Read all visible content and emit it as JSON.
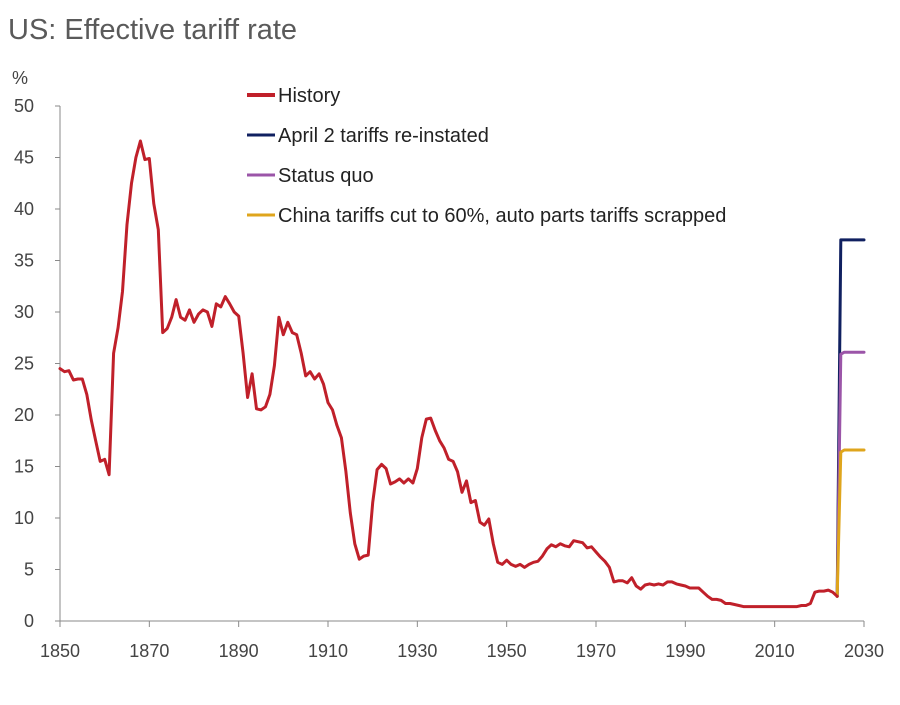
{
  "chart_data": {
    "type": "line",
    "title": "US: Effective tariff rate",
    "xlabel": "",
    "ylabel": "%",
    "xlim": [
      1850,
      2030
    ],
    "ylim": [
      0,
      50
    ],
    "x_ticks": [
      1850,
      1870,
      1890,
      1910,
      1930,
      1950,
      1970,
      1990,
      2010,
      2030
    ],
    "y_ticks": [
      0,
      5,
      10,
      15,
      20,
      25,
      30,
      35,
      40,
      45,
      50
    ],
    "grid": false,
    "legend_position": "top-center",
    "series": [
      {
        "name": "History",
        "color": "#c0202a",
        "points": [
          [
            1850,
            24.5
          ],
          [
            1851,
            24.2
          ],
          [
            1852,
            24.3
          ],
          [
            1853,
            23.4
          ],
          [
            1854,
            23.5
          ],
          [
            1855,
            23.5
          ],
          [
            1856,
            22.0
          ],
          [
            1857,
            19.5
          ],
          [
            1858,
            17.5
          ],
          [
            1859,
            15.5
          ],
          [
            1860,
            15.7
          ],
          [
            1861,
            14.2
          ],
          [
            1862,
            26.0
          ],
          [
            1863,
            28.5
          ],
          [
            1864,
            32.0
          ],
          [
            1865,
            38.5
          ],
          [
            1866,
            42.5
          ],
          [
            1867,
            45.0
          ],
          [
            1868,
            46.6
          ],
          [
            1869,
            44.8
          ],
          [
            1870,
            44.9
          ],
          [
            1871,
            40.5
          ],
          [
            1872,
            38.0
          ],
          [
            1873,
            28.0
          ],
          [
            1874,
            28.4
          ],
          [
            1875,
            29.5
          ],
          [
            1876,
            31.2
          ],
          [
            1877,
            29.5
          ],
          [
            1878,
            29.2
          ],
          [
            1879,
            30.2
          ],
          [
            1880,
            29.0
          ],
          [
            1881,
            29.8
          ],
          [
            1882,
            30.2
          ],
          [
            1883,
            30.0
          ],
          [
            1884,
            28.6
          ],
          [
            1885,
            30.8
          ],
          [
            1886,
            30.5
          ],
          [
            1887,
            31.5
          ],
          [
            1888,
            30.8
          ],
          [
            1889,
            30.0
          ],
          [
            1890,
            29.6
          ],
          [
            1891,
            26.0
          ],
          [
            1892,
            21.7
          ],
          [
            1893,
            24.0
          ],
          [
            1894,
            20.6
          ],
          [
            1895,
            20.5
          ],
          [
            1896,
            20.8
          ],
          [
            1897,
            22.0
          ],
          [
            1898,
            24.8
          ],
          [
            1899,
            29.5
          ],
          [
            1900,
            27.8
          ],
          [
            1901,
            29.0
          ],
          [
            1902,
            28.0
          ],
          [
            1903,
            27.8
          ],
          [
            1904,
            26.0
          ],
          [
            1905,
            23.8
          ],
          [
            1906,
            24.2
          ],
          [
            1907,
            23.5
          ],
          [
            1908,
            24.0
          ],
          [
            1909,
            23.0
          ],
          [
            1910,
            21.2
          ],
          [
            1911,
            20.5
          ],
          [
            1912,
            19.0
          ],
          [
            1913,
            17.8
          ],
          [
            1914,
            14.5
          ],
          [
            1915,
            10.5
          ],
          [
            1916,
            7.5
          ],
          [
            1917,
            6.0
          ],
          [
            1918,
            6.3
          ],
          [
            1919,
            6.4
          ],
          [
            1920,
            11.5
          ],
          [
            1921,
            14.7
          ],
          [
            1922,
            15.2
          ],
          [
            1923,
            14.8
          ],
          [
            1924,
            13.3
          ],
          [
            1925,
            13.5
          ],
          [
            1926,
            13.8
          ],
          [
            1927,
            13.4
          ],
          [
            1928,
            13.8
          ],
          [
            1929,
            13.4
          ],
          [
            1930,
            14.8
          ],
          [
            1931,
            17.8
          ],
          [
            1932,
            19.6
          ],
          [
            1933,
            19.7
          ],
          [
            1934,
            18.5
          ],
          [
            1935,
            17.5
          ],
          [
            1936,
            16.8
          ],
          [
            1937,
            15.7
          ],
          [
            1938,
            15.5
          ],
          [
            1939,
            14.5
          ],
          [
            1940,
            12.5
          ],
          [
            1941,
            13.6
          ],
          [
            1942,
            11.5
          ],
          [
            1943,
            11.7
          ],
          [
            1944,
            9.6
          ],
          [
            1945,
            9.3
          ],
          [
            1946,
            9.9
          ],
          [
            1947,
            7.5
          ],
          [
            1948,
            5.7
          ],
          [
            1949,
            5.5
          ],
          [
            1950,
            5.9
          ],
          [
            1951,
            5.5
          ],
          [
            1952,
            5.3
          ],
          [
            1953,
            5.5
          ],
          [
            1954,
            5.2
          ],
          [
            1955,
            5.5
          ],
          [
            1956,
            5.7
          ],
          [
            1957,
            5.8
          ],
          [
            1958,
            6.3
          ],
          [
            1959,
            7.0
          ],
          [
            1960,
            7.4
          ],
          [
            1961,
            7.2
          ],
          [
            1962,
            7.5
          ],
          [
            1963,
            7.3
          ],
          [
            1964,
            7.2
          ],
          [
            1965,
            7.8
          ],
          [
            1966,
            7.7
          ],
          [
            1967,
            7.6
          ],
          [
            1968,
            7.1
          ],
          [
            1969,
            7.2
          ],
          [
            1970,
            6.7
          ],
          [
            1971,
            6.2
          ],
          [
            1972,
            5.8
          ],
          [
            1973,
            5.2
          ],
          [
            1974,
            3.8
          ],
          [
            1975,
            3.9
          ],
          [
            1976,
            3.9
          ],
          [
            1977,
            3.7
          ],
          [
            1978,
            4.2
          ],
          [
            1979,
            3.4
          ],
          [
            1980,
            3.1
          ],
          [
            1981,
            3.5
          ],
          [
            1982,
            3.6
          ],
          [
            1983,
            3.5
          ],
          [
            1984,
            3.6
          ],
          [
            1985,
            3.5
          ],
          [
            1986,
            3.8
          ],
          [
            1987,
            3.8
          ],
          [
            1988,
            3.6
          ],
          [
            1989,
            3.5
          ],
          [
            1990,
            3.4
          ],
          [
            1991,
            3.2
          ],
          [
            1992,
            3.2
          ],
          [
            1993,
            3.2
          ],
          [
            1994,
            2.8
          ],
          [
            1995,
            2.4
          ],
          [
            1996,
            2.1
          ],
          [
            1997,
            2.1
          ],
          [
            1998,
            2.0
          ],
          [
            1999,
            1.7
          ],
          [
            2000,
            1.7
          ],
          [
            2001,
            1.6
          ],
          [
            2002,
            1.5
          ],
          [
            2003,
            1.4
          ],
          [
            2004,
            1.4
          ],
          [
            2005,
            1.4
          ],
          [
            2006,
            1.4
          ],
          [
            2007,
            1.4
          ],
          [
            2008,
            1.4
          ],
          [
            2009,
            1.4
          ],
          [
            2010,
            1.4
          ],
          [
            2011,
            1.4
          ],
          [
            2012,
            1.4
          ],
          [
            2013,
            1.4
          ],
          [
            2014,
            1.4
          ],
          [
            2015,
            1.4
          ],
          [
            2016,
            1.5
          ],
          [
            2017,
            1.5
          ],
          [
            2018,
            1.7
          ],
          [
            2019,
            2.8
          ],
          [
            2020,
            2.9
          ],
          [
            2021,
            2.9
          ],
          [
            2022,
            3.0
          ],
          [
            2023,
            2.8
          ],
          [
            2024,
            2.4
          ]
        ]
      },
      {
        "name": "April 2 tariffs re-instated",
        "color": "#102060",
        "points": [
          [
            2024,
            2.4
          ],
          [
            2024.8,
            37.0
          ],
          [
            2030,
            37.0
          ]
        ]
      },
      {
        "name": "Status quo",
        "color": "#9b55a8",
        "points": [
          [
            2024,
            2.4
          ],
          [
            2024.8,
            25.9
          ],
          [
            2025.6,
            26.1
          ],
          [
            2030,
            26.1
          ]
        ]
      },
      {
        "name": "China tariffs cut to 60%, auto parts tariffs scrapped",
        "color": "#dfa51c",
        "points": [
          [
            2024,
            2.4
          ],
          [
            2024.8,
            16.4
          ],
          [
            2025.6,
            16.6
          ],
          [
            2030,
            16.6
          ]
        ]
      }
    ]
  }
}
